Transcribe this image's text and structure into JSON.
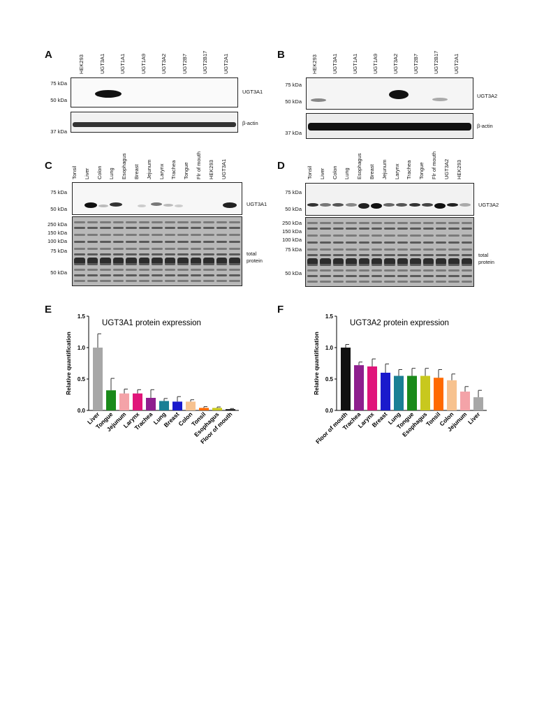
{
  "panels": {
    "A": {
      "letter": "A",
      "lanes": [
        "HEK293",
        "UGT3A1",
        "UGT1A1",
        "UGT1A9",
        "UGT3A2",
        "UGT2B7",
        "UGT2B17",
        "UGT2A1"
      ],
      "blot1_label": "UGT3A1",
      "blot2_label": "β-actin",
      "mw_top": [
        "75 kDa",
        "50 kDa"
      ],
      "mw_bottom": [
        "37 kDa"
      ]
    },
    "B": {
      "letter": "B",
      "lanes": [
        "HEK293",
        "UGT3A1",
        "UGT1A1",
        "UGT1A9",
        "UGT3A2",
        "UGT2B7",
        "UGT2B17",
        "UGT2A1"
      ],
      "blot1_label": "UGT3A2",
      "blot2_label": "β-actin",
      "mw_top": [
        "75 kDa",
        "50 kDa"
      ],
      "mw_bottom": [
        "37 kDa"
      ]
    },
    "C": {
      "letter": "C",
      "lanes": [
        "Tonsil",
        "Liver",
        "Colon",
        "Lung",
        "Esophagus",
        "Breast",
        "Jejunum",
        "Larynx",
        "Trachea",
        "Tongue",
        "Flr of mouth",
        "HEK293",
        "UGT3A1"
      ],
      "blot1_label": "UGT3A1",
      "blot2_label_1": "total",
      "blot2_label_2": "protein",
      "mw_top": [
        "75 kDa",
        "50 kDa"
      ],
      "mw_bottom": [
        "250 kDa",
        "150 kDa",
        "100 kDa",
        "75 kDa",
        "50 kDa"
      ]
    },
    "D": {
      "letter": "D",
      "lanes": [
        "Tonsil",
        "Liver",
        "Colon",
        "Lung",
        "Esophagus",
        "Breast",
        "Jejunum",
        "Larynx",
        "Trachea",
        "Tongue",
        "Flr of mouth",
        "UGT3A2",
        "HEK293"
      ],
      "blot1_label": "UGT3A2",
      "blot2_label_1": "total",
      "blot2_label_2": "protein",
      "mw_top": [
        "75 kDa",
        "50 kDa"
      ],
      "mw_bottom": [
        "250 kDa",
        "150 kDa",
        "100 kDa",
        "75 kDa",
        "50 kDa"
      ]
    },
    "E": {
      "letter": "E"
    },
    "F": {
      "letter": "F"
    }
  },
  "chart_data": [
    {
      "type": "bar",
      "title": "UGT3A1 protein expression",
      "ylabel": "Relative quantification",
      "xlabel": "",
      "ylim": [
        0,
        1.5
      ],
      "yticks": [
        "0.0",
        "0.5",
        "1.0",
        "1.5"
      ],
      "categories": [
        "Liver",
        "Tongue",
        "Jejunum",
        "Larynx",
        "Trachea",
        "Lung",
        "Breast",
        "Colon",
        "Tonsil",
        "Esophagus",
        "Floor of mouth"
      ],
      "values": [
        1.0,
        0.32,
        0.27,
        0.27,
        0.2,
        0.15,
        0.14,
        0.14,
        0.04,
        0.04,
        0.02
      ],
      "errors": [
        0.22,
        0.19,
        0.07,
        0.06,
        0.13,
        0.04,
        0.08,
        0.03,
        0.02,
        0.015,
        0.01
      ],
      "colors": [
        "#a7a7a7",
        "#1a8a1a",
        "#f4a3a8",
        "#e0157a",
        "#8e1f8e",
        "#1a7f95",
        "#1a1acc",
        "#f7c28f",
        "#ff6a00",
        "#c8c81e",
        "#111111"
      ]
    },
    {
      "type": "bar",
      "title": "UGT3A2 protein expression",
      "ylabel": "Relative quantification",
      "xlabel": "",
      "ylim": [
        0,
        1.5
      ],
      "yticks": [
        "0.0",
        "0.5",
        "1.0",
        "1.5"
      ],
      "categories": [
        "Floor of mouth",
        "Trachea",
        "Larynx",
        "Breast",
        "Lung",
        "Tongue",
        "Esophagus",
        "Tonsil",
        "Colon",
        "Jejunum",
        "Liver"
      ],
      "values": [
        1.0,
        0.72,
        0.7,
        0.6,
        0.55,
        0.55,
        0.55,
        0.52,
        0.48,
        0.3,
        0.21
      ],
      "errors": [
        0.05,
        0.05,
        0.12,
        0.14,
        0.1,
        0.12,
        0.12,
        0.13,
        0.1,
        0.08,
        0.11
      ],
      "colors": [
        "#111111",
        "#8e1f8e",
        "#e0157a",
        "#1a1acc",
        "#1a7f95",
        "#1a8a1a",
        "#c8c81e",
        "#ff6a00",
        "#f7c28f",
        "#f4a3a8",
        "#a7a7a7"
      ]
    }
  ]
}
